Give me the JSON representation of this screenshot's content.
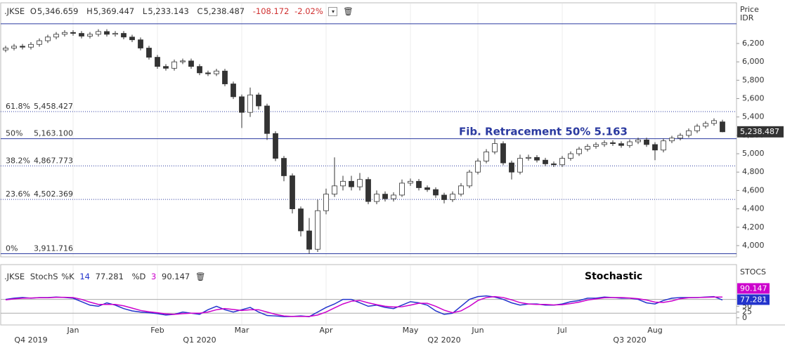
{
  "chart_data": [
    {
      "type": "candlestick",
      "header": {
        "symbol": ".JKSE",
        "items": [
          {
            "key": "O",
            "value": "5,346.659"
          },
          {
            "key": "H",
            "value": "5,369.447"
          },
          {
            "key": "L",
            "value": "5,233.143"
          },
          {
            "key": "C",
            "value": "5,238.487"
          }
        ],
        "change": "-108.172",
        "change_pct": "-2.02%"
      },
      "y_label": "Price",
      "y_unit": "IDR",
      "annotation": "Fib. Retracement 50%  5.163",
      "last_price": {
        "value": 5238.487,
        "label": "5,238.487"
      },
      "categories": [
        null,
        null,
        null,
        null,
        null,
        null,
        null,
        null,
        "Jan",
        null,
        null,
        null,
        null,
        null,
        null,
        null,
        null,
        null,
        "Feb",
        null,
        null,
        null,
        null,
        null,
        null,
        null,
        null,
        null,
        "Mar",
        null,
        null,
        null,
        null,
        null,
        null,
        null,
        null,
        null,
        "Apr",
        null,
        null,
        null,
        null,
        null,
        null,
        null,
        null,
        null,
        "May",
        null,
        null,
        null,
        null,
        null,
        null,
        null,
        "Jun",
        null,
        null,
        null,
        null,
        null,
        null,
        null,
        null,
        null,
        "Jul",
        null,
        null,
        null,
        null,
        null,
        null,
        null,
        null,
        null,
        null,
        "Aug",
        null,
        null,
        null,
        null,
        null,
        null,
        null,
        null
      ],
      "x_groups": [
        null,
        null,
        null,
        "Q4 2019",
        null,
        null,
        null,
        null,
        null,
        null,
        null,
        null,
        null,
        null,
        null,
        null,
        null,
        null,
        null,
        null,
        null,
        null,
        null,
        "Q1 2020",
        null,
        null,
        null,
        null,
        null,
        null,
        null,
        null,
        null,
        null,
        null,
        null,
        null,
        null,
        null,
        null,
        null,
        null,
        null,
        null,
        null,
        null,
        null,
        null,
        null,
        null,
        null,
        null,
        "Q2 2020",
        null,
        null,
        null,
        null,
        null,
        null,
        null,
        null,
        null,
        null,
        null,
        null,
        null,
        null,
        null,
        null,
        null,
        null,
        null,
        null,
        null,
        "Q3 2020",
        null,
        null,
        null,
        null,
        null,
        null,
        null,
        null,
        null
      ],
      "series": [
        {
          "name": ".JKSE",
          "up_color": "#ffffff",
          "down_color": "#333333",
          "open": [
            6130,
            6150,
            6170,
            6160,
            6190,
            6230,
            6270,
            6300,
            6320,
            6310,
            6280,
            6300,
            6330,
            6300,
            6310,
            6270,
            6240,
            6150,
            6050,
            5950,
            5930,
            6000,
            6010,
            5950,
            5880,
            5870,
            5900,
            5760,
            5620,
            5450,
            5640,
            5520,
            5220,
            4950,
            4760,
            4400,
            4160,
            3960,
            4380,
            4560,
            4650,
            4700,
            4640,
            4720,
            4480,
            4560,
            4510,
            4550,
            4680,
            4700,
            4630,
            4610,
            4550,
            4500,
            4560,
            4650,
            4800,
            4920,
            5020,
            5110,
            4900,
            4800,
            4950,
            4960,
            4930,
            4890,
            4880,
            4950,
            5000,
            5050,
            5080,
            5100,
            5120,
            5110,
            5090,
            5130,
            5150,
            5100,
            5040,
            5140,
            5170,
            5200,
            5250,
            5300,
            5330,
            5346.659
          ],
          "high": [
            6175,
            6195,
            6195,
            6215,
            6255,
            6295,
            6325,
            6345,
            6345,
            6335,
            6325,
            6355,
            6355,
            6335,
            6335,
            6295,
            6265,
            6175,
            6075,
            5975,
            6025,
            6035,
            6035,
            5975,
            5905,
            5925,
            5925,
            5785,
            5645,
            5720,
            5665,
            5545,
            5245,
            4975,
            4785,
            4425,
            4300,
            4500,
            4620,
            4960,
            4760,
            4760,
            4790,
            4745,
            4600,
            4590,
            4580,
            4720,
            4730,
            4725,
            4655,
            4635,
            4575,
            4590,
            4680,
            4825,
            4950,
            5050,
            5160,
            5135,
            4925,
            4990,
            4990,
            4985,
            4955,
            4915,
            4975,
            5025,
            5075,
            5105,
            5125,
            5145,
            5145,
            5135,
            5155,
            5175,
            5175,
            5125,
            5165,
            5195,
            5225,
            5275,
            5325,
            5355,
            5385,
            5369.447
          ],
          "low": [
            6105,
            6125,
            6135,
            6135,
            6165,
            6205,
            6245,
            6275,
            6285,
            6255,
            6255,
            6275,
            6275,
            6275,
            6245,
            6215,
            6125,
            6025,
            5925,
            5905,
            5905,
            5975,
            5925,
            5855,
            5845,
            5845,
            5735,
            5595,
            5280,
            5400,
            5480,
            5150,
            4920,
            4700,
            4350,
            4100,
            3912,
            3930,
            4340,
            4530,
            4600,
            4600,
            4600,
            4450,
            4450,
            4480,
            4480,
            4530,
            4650,
            4600,
            4585,
            4520,
            4460,
            4475,
            4535,
            4625,
            4775,
            4895,
            4995,
            4875,
            4720,
            4775,
            4925,
            4905,
            4865,
            4855,
            4855,
            4925,
            4975,
            5025,
            5055,
            5075,
            5085,
            5065,
            5065,
            5105,
            5075,
            4930,
            5015,
            5115,
            5145,
            5175,
            5225,
            5275,
            5305,
            5233.143
          ],
          "close": [
            6150,
            6170,
            6160,
            6190,
            6230,
            6270,
            6300,
            6320,
            6310,
            6280,
            6300,
            6330,
            6300,
            6310,
            6270,
            6240,
            6150,
            6050,
            5950,
            5930,
            6000,
            6010,
            5950,
            5880,
            5870,
            5900,
            5760,
            5620,
            5450,
            5640,
            5520,
            5220,
            4950,
            4760,
            4400,
            4160,
            3960,
            4380,
            4560,
            4650,
            4700,
            4640,
            4720,
            4480,
            4560,
            4510,
            4550,
            4680,
            4700,
            4630,
            4610,
            4550,
            4500,
            4560,
            4650,
            4800,
            4920,
            5020,
            5110,
            4900,
            4800,
            4950,
            4960,
            4930,
            4890,
            4880,
            4950,
            5000,
            5050,
            5080,
            5100,
            5120,
            5110,
            5090,
            5130,
            5150,
            5100,
            5040,
            5140,
            5170,
            5200,
            5250,
            5300,
            5330,
            5360,
            5238.487
          ]
        }
      ],
      "fib_levels": [
        {
          "value": 6414.484,
          "style": "solid"
        },
        {
          "label": "61.8%",
          "value": 5458.427,
          "value_label": "5,458.427",
          "style": "dotted"
        },
        {
          "label": "50%",
          "value": 5163.1,
          "value_label": "5,163.100",
          "style": "solid"
        },
        {
          "label": "38.2%",
          "value": 4867.773,
          "value_label": "4,867.773",
          "style": "dotted"
        },
        {
          "label": "23.6%",
          "value": 4502.369,
          "value_label": "4,502.369",
          "style": "dotted"
        },
        {
          "label": "0%",
          "value": 3911.716,
          "value_label": "3,911.716",
          "style": "solid"
        }
      ],
      "fib_color": "#2b3aa0",
      "ylim": [
        3885,
        6635
      ],
      "yticks": [
        {
          "value": 4000,
          "label": "4,000"
        },
        {
          "value": 4200,
          "label": "4,200"
        },
        {
          "value": 4400,
          "label": "4,400"
        },
        {
          "value": 4600,
          "label": "4,600"
        },
        {
          "value": 4800,
          "label": "4,800"
        },
        {
          "value": 5000,
          "label": "5,000"
        },
        {
          "value": 5200,
          "label": "5,200"
        },
        {
          "value": 5400,
          "label": "5,400"
        },
        {
          "value": 5600,
          "label": "5,600"
        },
        {
          "value": 5800,
          "label": "5,800"
        },
        {
          "value": 6000,
          "label": "6,000"
        },
        {
          "value": 6200,
          "label": "6,200"
        }
      ],
      "grid": false
    },
    {
      "type": "line",
      "title": "Stochastic",
      "axis_label": "STOCS",
      "legend": {
        "symbol": ".JKSE",
        "study": "StochS",
        "k_key": "%K",
        "k_period": "14",
        "k_value": "77.281",
        "d_key": "%D",
        "d_period": "3",
        "d_value": "90.147"
      },
      "series": [
        {
          "name": "%K",
          "color": "#2233cc",
          "values": [
            80,
            85,
            88,
            85,
            88,
            88,
            90,
            88,
            85,
            70,
            55,
            50,
            65,
            55,
            40,
            30,
            25,
            22,
            18,
            12,
            15,
            25,
            20,
            15,
            35,
            50,
            35,
            25,
            35,
            45,
            25,
            10,
            8,
            5,
            6,
            8,
            5,
            25,
            45,
            60,
            80,
            80,
            65,
            50,
            55,
            45,
            40,
            55,
            70,
            65,
            55,
            30,
            15,
            20,
            50,
            80,
            92,
            95,
            90,
            80,
            65,
            55,
            60,
            60,
            55,
            55,
            60,
            70,
            75,
            85,
            85,
            90,
            88,
            85,
            85,
            80,
            65,
            60,
            75,
            85,
            88,
            88,
            88,
            90,
            92,
            77.281
          ]
        },
        {
          "name": "%D",
          "color": "#cc00cc",
          "values": [
            78,
            82,
            85,
            86,
            87,
            87,
            89,
            89,
            88,
            80,
            68,
            58,
            58,
            58,
            52,
            42,
            32,
            26,
            22,
            17,
            15,
            18,
            20,
            20,
            25,
            35,
            40,
            36,
            32,
            35,
            35,
            25,
            15,
            8,
            6,
            6,
            6,
            12,
            25,
            43,
            60,
            72,
            75,
            65,
            57,
            50,
            47,
            48,
            55,
            63,
            63,
            50,
            33,
            22,
            30,
            50,
            75,
            88,
            92,
            88,
            78,
            66,
            60,
            58,
            58,
            56,
            57,
            62,
            68,
            77,
            82,
            87,
            88,
            88,
            86,
            83,
            77,
            68,
            67,
            73,
            83,
            87,
            88,
            89,
            90,
            90.147
          ]
        }
      ],
      "levels": [
        20,
        80
      ],
      "ylim": [
        -28,
        228
      ],
      "yticks": [
        0,
        25,
        50
      ]
    }
  ]
}
